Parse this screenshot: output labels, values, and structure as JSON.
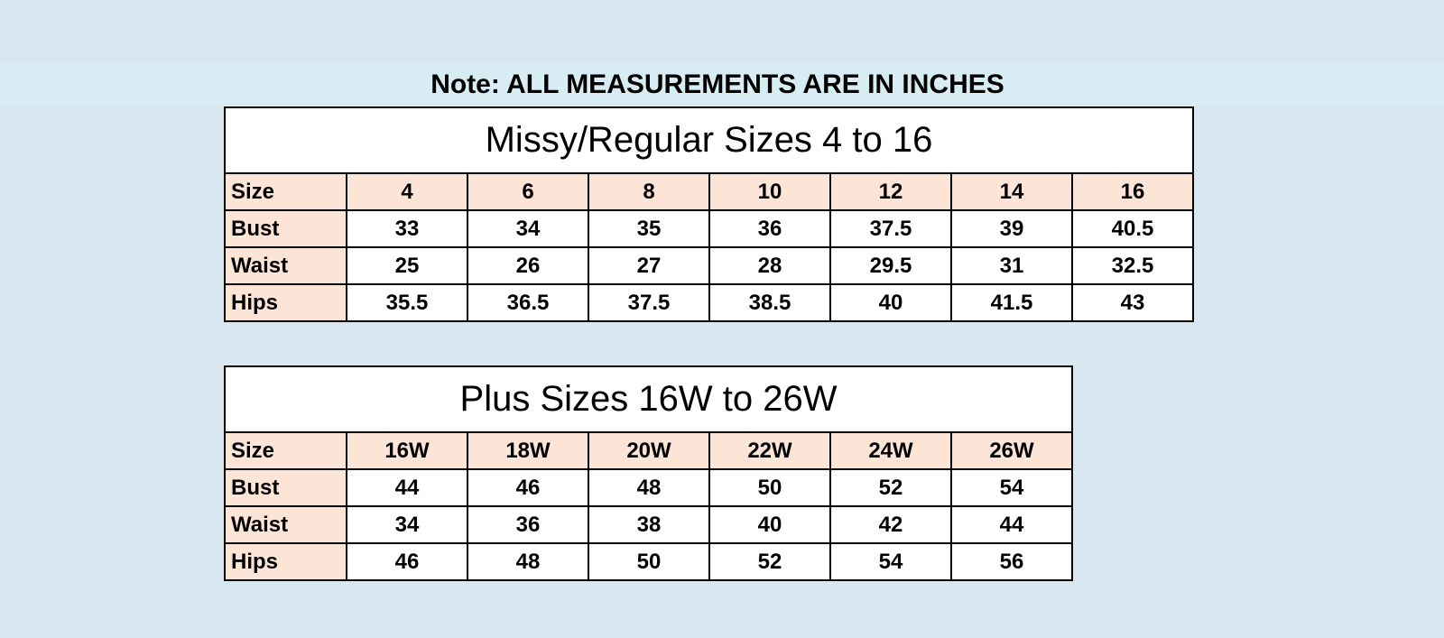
{
  "note": "Note: ALL MEASUREMENTS ARE IN INCHES",
  "tables": [
    {
      "title": "Missy/Regular Sizes 4 to 16",
      "header": [
        "Size",
        "4",
        "6",
        "8",
        "10",
        "12",
        "14",
        "16"
      ],
      "rows": [
        [
          "Bust",
          "33",
          "34",
          "35",
          "36",
          "37.5",
          "39",
          "40.5"
        ],
        [
          "Waist",
          "25",
          "26",
          "27",
          "28",
          "29.5",
          "31",
          "32.5"
        ],
        [
          "Hips",
          "35.5",
          "36.5",
          "37.5",
          "38.5",
          "40",
          "41.5",
          "43"
        ]
      ]
    },
    {
      "title": "Plus Sizes 16W to 26W",
      "header": [
        "Size",
        "16W",
        "18W",
        "20W",
        "22W",
        "24W",
        "26W"
      ],
      "rows": [
        [
          "Bust",
          "44",
          "46",
          "48",
          "50",
          "52",
          "54"
        ],
        [
          "Waist",
          "34",
          "36",
          "38",
          "40",
          "42",
          "44"
        ],
        [
          "Hips",
          "46",
          "48",
          "50",
          "52",
          "54",
          "56"
        ]
      ]
    }
  ]
}
